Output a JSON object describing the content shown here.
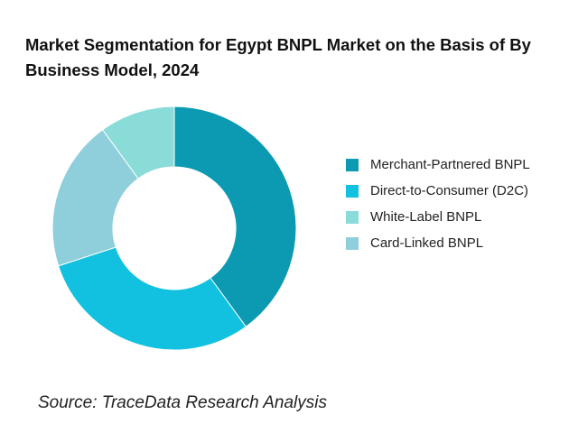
{
  "chart_data": {
    "type": "donut",
    "title": "Market Segmentation for Egypt BNPL Market on the Basis of By Business Model, 2024",
    "categories": [
      "Merchant-Partnered BNPL",
      "Direct-to-Consumer (D2C)",
      "White-Label BNPL",
      "Card-Linked BNPL"
    ],
    "values": [
      40,
      30,
      10,
      20
    ],
    "colors": [
      "#0b9ab2",
      "#12c1df",
      "#8adcd9",
      "#8fcfdb"
    ],
    "source": "Source: TraceData Research Analysis"
  }
}
